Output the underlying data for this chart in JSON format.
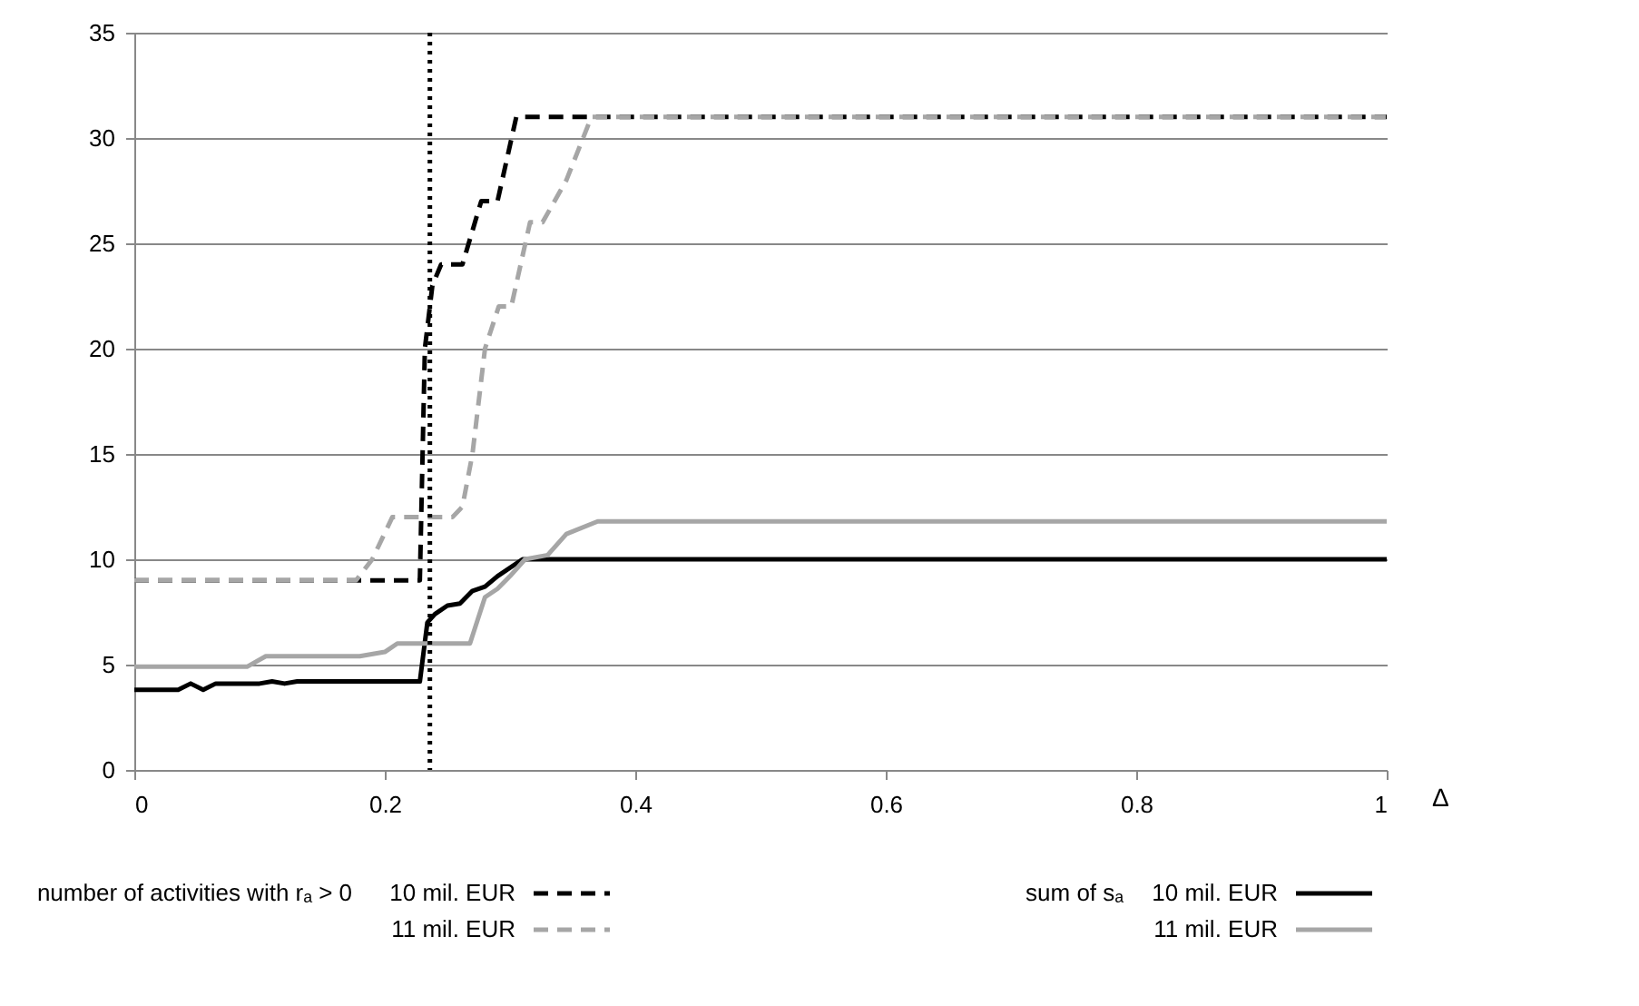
{
  "chart_data": {
    "type": "line",
    "xlabel": "Δ",
    "xlim": [
      0,
      1
    ],
    "xticks": [
      0,
      0.2,
      0.4,
      0.6,
      0.8,
      1
    ],
    "ylim": [
      0,
      35
    ],
    "yticks": [
      0,
      5,
      10,
      15,
      20,
      25,
      30,
      35
    ],
    "grid": "y",
    "legend": "bottom",
    "marker": "none",
    "annotations": [
      "number of activities with rₐ > 0",
      "sum of sₐ"
    ],
    "ref_lines": [
      {
        "axis": "x",
        "value": 0.236,
        "color": "#000000",
        "line_style": "dotted"
      }
    ],
    "series": [
      {
        "name": "10 mil. EUR",
        "color": "#000000",
        "line_style": "dashed",
        "x": [
          0,
          0.228,
          0.232,
          0.238,
          0.245,
          0.262,
          0.277,
          0.29,
          0.305,
          1
        ],
        "values": [
          9,
          9,
          20,
          23,
          24,
          24,
          27,
          27,
          31,
          31
        ]
      },
      {
        "name": "11 mil. EUR",
        "color": "#a6a6a6",
        "line_style": "dashed",
        "x": [
          0,
          0.177,
          0.19,
          0.206,
          0.254,
          0.262,
          0.27,
          0.28,
          0.291,
          0.301,
          0.316,
          0.326,
          0.345,
          0.365,
          1
        ],
        "values": [
          9,
          9,
          10,
          12,
          12,
          12.5,
          15,
          20,
          22,
          22,
          26,
          26,
          28,
          31,
          31
        ]
      },
      {
        "name": "10 mil. EUR",
        "color": "#000000",
        "line_style": "solid",
        "x": [
          0,
          0.035,
          0.045,
          0.055,
          0.065,
          0.1,
          0.11,
          0.12,
          0.13,
          0.228,
          0.234,
          0.24,
          0.25,
          0.26,
          0.27,
          0.28,
          0.29,
          0.31,
          1
        ],
        "values": [
          3.8,
          3.8,
          4.1,
          3.8,
          4.1,
          4.1,
          4.2,
          4.1,
          4.2,
          4.2,
          7,
          7.4,
          7.8,
          7.9,
          8.5,
          8.7,
          9.2,
          10,
          10
        ]
      },
      {
        "name": "11 mil. EUR",
        "color": "#a6a6a6",
        "line_style": "solid",
        "x": [
          0,
          0.09,
          0.105,
          0.18,
          0.2,
          0.21,
          0.268,
          0.28,
          0.29,
          0.3,
          0.312,
          0.33,
          0.345,
          0.37,
          1
        ],
        "values": [
          4.9,
          4.9,
          5.4,
          5.4,
          5.6,
          6,
          6,
          8.2,
          8.6,
          9.2,
          10,
          10.2,
          11.2,
          11.8,
          11.8
        ]
      }
    ]
  }
}
